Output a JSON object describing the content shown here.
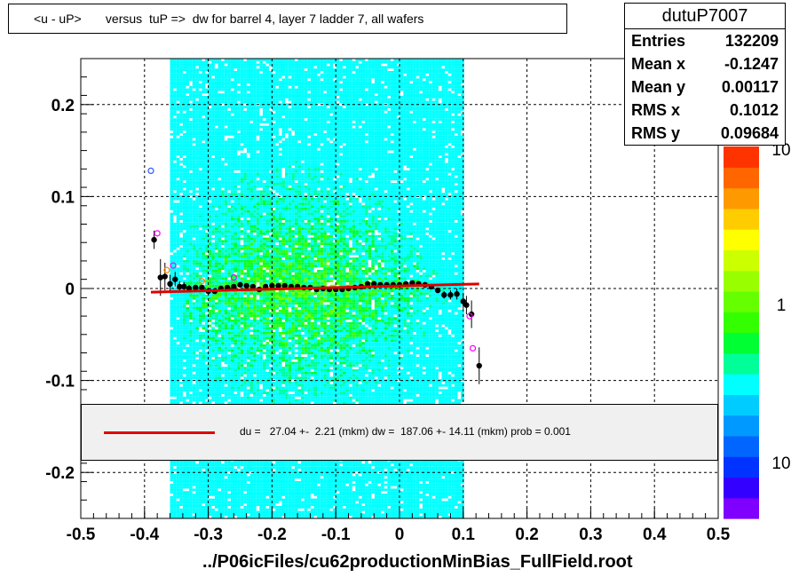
{
  "header": {
    "title": "<u - uP>       versus  tuP =>  dw for barrel 4, layer 7 ladder 7, all wafers"
  },
  "stats": {
    "name": "dutuP7007",
    "rows": [
      {
        "label": "Entries",
        "value": "132209"
      },
      {
        "label": "Mean x",
        "value": "-0.1247"
      },
      {
        "label": "Mean y",
        "value": "0.00117"
      },
      {
        "label": "RMS x",
        "value": "0.1012"
      },
      {
        "label": "RMS y",
        "value": "0.09684"
      }
    ]
  },
  "fit": {
    "text": "du =   27.04 +-  2.21 (mkm) dw =  187.06 +- 14.11 (mkm) prob = 0.001",
    "color": "#e00000"
  },
  "footer": {
    "xlabel": "../P06icFiles/cu62productionMinBias_FullField.root"
  },
  "colorbar": {
    "labels": [
      "10",
      "1",
      "10"
    ]
  },
  "chart_data": {
    "type": "heatmap",
    "xlim": [
      -0.5,
      0.5
    ],
    "ylim": [
      -0.25,
      0.25
    ],
    "x_ticks": [
      "-0.5",
      "-0.4",
      "-0.3",
      "-0.2",
      "-0.1",
      "0",
      "0.1",
      "0.2",
      "0.3",
      "0.4",
      "0.5"
    ],
    "y_ticks": [
      "0.2",
      "0.1",
      "0",
      "-0.1",
      "-0.2"
    ],
    "grid": true,
    "colorbar_ticks": [
      "10",
      "1",
      "10"
    ],
    "occupied_x_range": [
      -0.36,
      0.1
    ],
    "palette": [
      "#7f00ff",
      "#3300ff",
      "#0033ff",
      "#0066ff",
      "#0099ff",
      "#00ccff",
      "#00ffff",
      "#00ff99",
      "#00ff33",
      "#33ff00",
      "#66ff00",
      "#99ff00",
      "#ccff00",
      "#ffff00",
      "#ffcc00",
      "#ff9900",
      "#ff6600",
      "#ff3300"
    ],
    "profile": {
      "x": [
        -0.385,
        -0.375,
        -0.368,
        -0.36,
        -0.352,
        -0.345,
        -0.338,
        -0.33,
        -0.32,
        -0.31,
        -0.3,
        -0.29,
        -0.28,
        -0.27,
        -0.26,
        -0.25,
        -0.24,
        -0.23,
        -0.22,
        -0.21,
        -0.2,
        -0.19,
        -0.18,
        -0.17,
        -0.16,
        -0.15,
        -0.14,
        -0.13,
        -0.12,
        -0.11,
        -0.1,
        -0.09,
        -0.08,
        -0.07,
        -0.06,
        -0.05,
        -0.04,
        -0.03,
        -0.02,
        -0.01,
        0.0,
        0.01,
        0.02,
        0.03,
        0.04,
        0.05,
        0.06,
        0.07,
        0.08,
        0.09,
        0.1,
        0.105,
        0.113,
        0.125
      ],
      "y": [
        0.053,
        0.012,
        0.013,
        0.005,
        0.01,
        0.002,
        0.002,
        0.0,
        0.001,
        0.001,
        -0.003,
        -0.003,
        0.0,
        0.001,
        0.002,
        0.004,
        0.003,
        0.002,
        -0.001,
        0.002,
        0.003,
        0.003,
        0.003,
        0.002,
        0.002,
        0.001,
        0.001,
        -0.001,
        0.0,
        -0.001,
        -0.001,
        -0.001,
        0.0,
        0.001,
        0.002,
        0.005,
        0.005,
        0.004,
        0.004,
        0.004,
        0.004,
        0.005,
        0.006,
        0.005,
        0.004,
        0.002,
        -0.002,
        -0.007,
        -0.007,
        -0.006,
        -0.014,
        -0.018,
        -0.028,
        -0.084
      ],
      "err": [
        0.01,
        0.02,
        0.015,
        0.01,
        0.008,
        0.006,
        0.005,
        0.004,
        0.003,
        0.003,
        0.003,
        0.003,
        0.002,
        0.002,
        0.002,
        0.002,
        0.002,
        0.002,
        0.002,
        0.002,
        0.002,
        0.002,
        0.002,
        0.002,
        0.002,
        0.002,
        0.002,
        0.002,
        0.002,
        0.002,
        0.002,
        0.002,
        0.002,
        0.002,
        0.002,
        0.002,
        0.002,
        0.002,
        0.002,
        0.002,
        0.002,
        0.002,
        0.002,
        0.002,
        0.002,
        0.003,
        0.003,
        0.004,
        0.005,
        0.006,
        0.008,
        0.01,
        0.015,
        0.02
      ]
    },
    "open_markers": {
      "x": [
        -0.39,
        -0.38,
        -0.365,
        -0.355,
        -0.31,
        -0.26,
        0.11,
        0.115
      ],
      "y": [
        0.128,
        0.06,
        0.02,
        0.025,
        0.008,
        0.012,
        -0.03,
        -0.065
      ],
      "colors": [
        "#3355ff",
        "#ff00ff",
        "#ff8800",
        "#ff00ff",
        "#ff8800",
        "#ff00ff",
        "#ff00ff",
        "#ff00ff"
      ]
    },
    "fit_line": {
      "x": [
        -0.39,
        0.125
      ],
      "y": [
        -0.004,
        0.005
      ],
      "color": "#e00000"
    }
  }
}
